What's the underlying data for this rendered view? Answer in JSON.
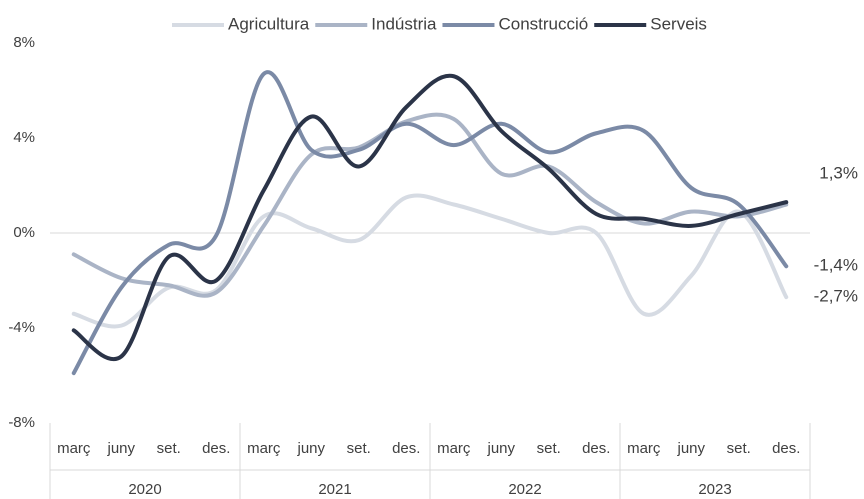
{
  "chart_data": {
    "type": "line",
    "categories": [
      "març",
      "juny",
      "set.",
      "des.",
      "març",
      "juny",
      "set.",
      "des.",
      "març",
      "juny",
      "set.",
      "des.",
      "març",
      "juny",
      "set.",
      "des."
    ],
    "groups": [
      "2020",
      "2021",
      "2022",
      "2023"
    ],
    "ylim": [
      -8,
      8
    ],
    "yticks": [
      {
        "value": -8,
        "label": "-8%"
      },
      {
        "value": -4,
        "label": "-4%"
      },
      {
        "value": 0,
        "label": "0%"
      },
      {
        "value": 4,
        "label": "4%"
      },
      {
        "value": 8,
        "label": "8%"
      }
    ],
    "grid": false,
    "zeroline": true,
    "legend": "top",
    "smooth": true,
    "series": [
      {
        "name": "Agricultura",
        "color": "#d6dbe3",
        "values": [
          -3.4,
          -3.9,
          -2.3,
          -2.4,
          0.7,
          0.2,
          -0.3,
          1.5,
          1.2,
          0.6,
          0.0,
          0.0,
          -3.4,
          -1.8,
          0.9,
          -2.7
        ],
        "value_labels": [
          null,
          null,
          null,
          null,
          null,
          null,
          null,
          null,
          null,
          null,
          null,
          null,
          null,
          null,
          null,
          "-2,7%"
        ]
      },
      {
        "name": "Indústria",
        "color": "#aab4c6",
        "values": [
          -0.9,
          -1.9,
          -2.2,
          -2.5,
          0.3,
          3.3,
          3.6,
          4.7,
          4.8,
          2.5,
          2.8,
          1.3,
          0.4,
          0.9,
          0.7,
          1.2
        ]
      },
      {
        "name": "Construcció",
        "color": "#7b8aa6",
        "values": [
          -5.9,
          -2.3,
          -0.5,
          -0.1,
          6.7,
          3.5,
          3.5,
          4.6,
          3.7,
          4.6,
          3.4,
          4.2,
          4.3,
          1.9,
          1.2,
          -1.4
        ],
        "value_labels": [
          null,
          null,
          null,
          null,
          null,
          null,
          null,
          null,
          null,
          null,
          null,
          null,
          null,
          null,
          null,
          "-1,4%"
        ]
      },
      {
        "name": "Serveis",
        "color": "#2b3448",
        "values": [
          -4.1,
          -5.2,
          -1.0,
          -2.0,
          1.8,
          4.9,
          2.8,
          5.3,
          6.6,
          4.3,
          2.7,
          0.8,
          0.6,
          0.3,
          0.8,
          1.3
        ],
        "value_labels": [
          null,
          null,
          null,
          null,
          null,
          null,
          null,
          null,
          null,
          null,
          null,
          null,
          null,
          null,
          null,
          "1,3%"
        ]
      }
    ]
  }
}
